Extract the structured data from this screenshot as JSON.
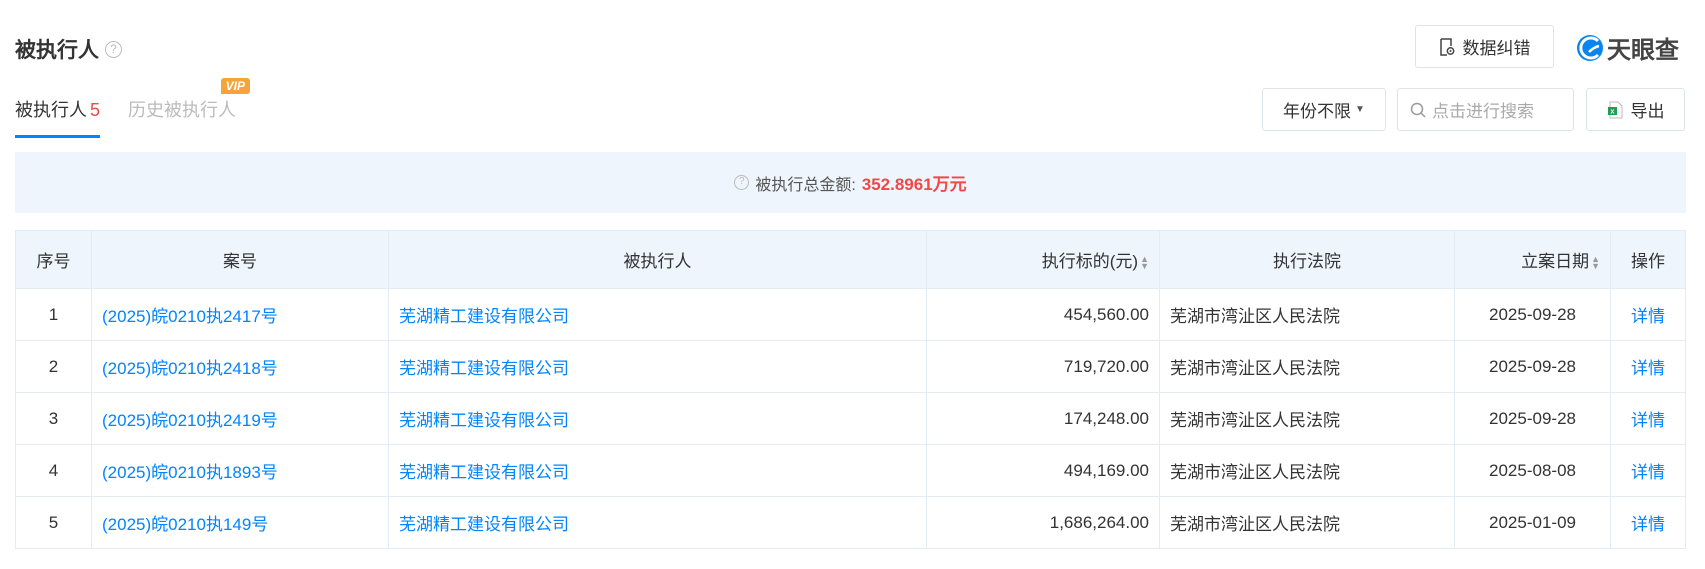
{
  "header": {
    "title": "被执行人",
    "help_icon": "question-circle-icon",
    "correct_button": "数据纠错",
    "logo_text": "天眼查"
  },
  "tabs": [
    {
      "label": "被执行人",
      "count": "5",
      "active": true
    },
    {
      "label": "历史被执行人",
      "badge": "VIP",
      "active": false
    }
  ],
  "filters": {
    "year_select": "年份不限",
    "search_placeholder": "点击进行搜索",
    "export_button": "导出"
  },
  "summary": {
    "label": "被执行总金额:",
    "amount": "352.8961万元"
  },
  "table": {
    "columns": [
      "序号",
      "案号",
      "被执行人",
      "执行标的(元)",
      "执行法院",
      "立案日期",
      "操作"
    ],
    "rows": [
      [
        "1",
        "(2025)皖0210执2417号",
        "芜湖精工建设有限公司",
        "454,560.00",
        "芜湖市湾沚区人民法院",
        "2025-09-28",
        "详情"
      ],
      [
        "2",
        "(2025)皖0210执2418号",
        "芜湖精工建设有限公司",
        "719,720.00",
        "芜湖市湾沚区人民法院",
        "2025-09-28",
        "详情"
      ],
      [
        "3",
        "(2025)皖0210执2419号",
        "芜湖精工建设有限公司",
        "174,248.00",
        "芜湖市湾沚区人民法院",
        "2025-09-28",
        "详情"
      ],
      [
        "4",
        "(2025)皖0210执1893号",
        "芜湖精工建设有限公司",
        "494,169.00",
        "芜湖市湾沚区人民法院",
        "2025-08-08",
        "详情"
      ],
      [
        "5",
        "(2025)皖0210执149号",
        "芜湖精工建设有限公司",
        "1,686,264.00",
        "芜湖市湾沚区人民法院",
        "2025-01-09",
        "详情"
      ]
    ]
  },
  "colors": {
    "accent": "#0084ff",
    "amount": "#f04848",
    "banner_bg": "#eef5fc",
    "vip": "#f3a53a"
  }
}
